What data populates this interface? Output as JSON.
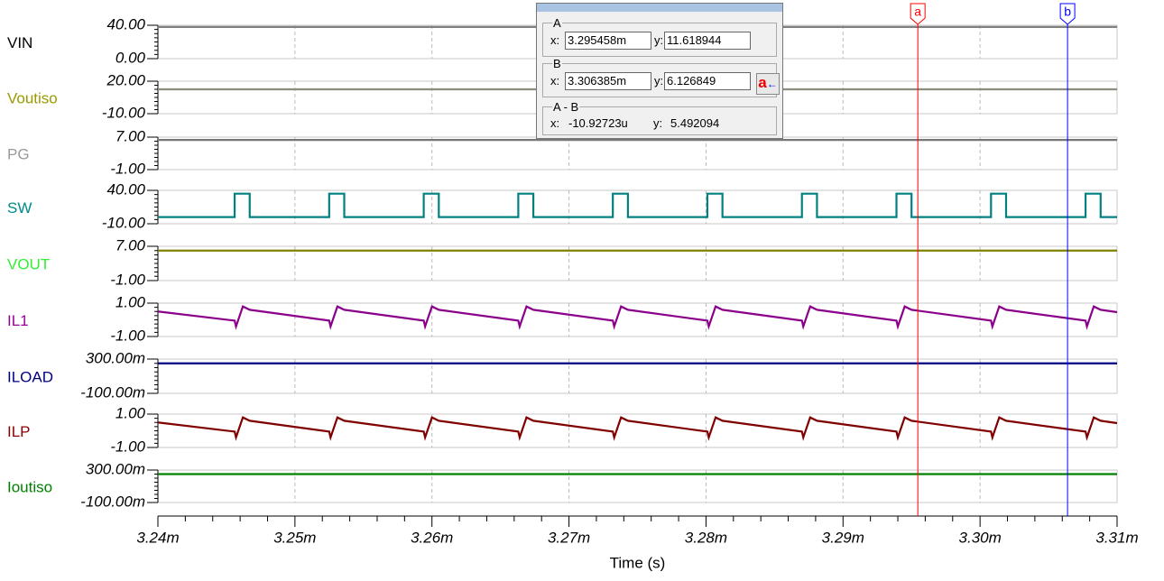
{
  "chart_data": [
    {
      "type": "line",
      "ylim": [
        0,
        40
      ],
      "yticks": [
        {
          "value": 40,
          "label": "40.00"
        },
        {
          "value": 0,
          "label": "0.00"
        }
      ],
      "xlim": [
        0.00324,
        0.00331
      ],
      "grid": true,
      "label_color": "#000000",
      "x": [
        0.00324,
        0.00331
      ],
      "series": [
        {
          "name": "VIN",
          "color": "#808080",
          "values": [
            38,
            38
          ]
        }
      ]
    },
    {
      "type": "line",
      "ylim": [
        -10,
        20
      ],
      "yticks": [
        {
          "value": 20,
          "label": "20.00"
        },
        {
          "value": -10,
          "label": "-10.00"
        }
      ],
      "xlim": [
        0.00324,
        0.00331
      ],
      "grid": true,
      "label_color": "#9a9a00",
      "x": [
        0.00324,
        0.00331
      ],
      "series": [
        {
          "name": "Voutiso",
          "color": "#8c8c80",
          "values": [
            12.5,
            12.5
          ]
        }
      ]
    },
    {
      "type": "line",
      "ylim": [
        -1,
        7
      ],
      "yticks": [
        {
          "value": 7,
          "label": "7.00"
        },
        {
          "value": -1,
          "label": "-1.00"
        }
      ],
      "xlim": [
        0.00324,
        0.00331
      ],
      "grid": true,
      "label_color": "#9a9a9a",
      "x": [
        0.00324,
        0.00331
      ],
      "series": [
        {
          "name": "PG",
          "color": "#777777",
          "values": [
            6.3,
            6.3
          ]
        }
      ]
    },
    {
      "type": "line",
      "ylim": [
        -10,
        40
      ],
      "yticks": [
        {
          "value": 40,
          "label": "40.00"
        },
        {
          "value": -10,
          "label": "-10.00"
        }
      ],
      "xlim": [
        0.00324,
        0.00331
      ],
      "grid": true,
      "label_color": "#008b8b",
      "x": [
        0.00324,
        0.0032456,
        0.0032456,
        0.0032467,
        0.0032467,
        0.0032525,
        0.0032525,
        0.0032536,
        0.0032536,
        0.0032594,
        0.0032594,
        0.0032605,
        0.0032605,
        0.0032663,
        0.0032663,
        0.0032674,
        0.0032674,
        0.0032732,
        0.0032732,
        0.0032743,
        0.0032743,
        0.0032801,
        0.0032801,
        0.0032812,
        0.0032812,
        0.003287,
        0.003287,
        0.0032881,
        0.0032881,
        0.0032939,
        0.0032939,
        0.003295,
        0.003295,
        0.0033008,
        0.0033008,
        0.0033019,
        0.0033019,
        0.0033077,
        0.0033077,
        0.0033088,
        0.0033088,
        0.00331
      ],
      "series": [
        {
          "name": "SW",
          "color": "#008080",
          "values": [
            0,
            0,
            35,
            35,
            0,
            0,
            35,
            35,
            0,
            0,
            35,
            35,
            0,
            0,
            35,
            35,
            0,
            0,
            35,
            35,
            0,
            0,
            35,
            35,
            0,
            0,
            35,
            35,
            0,
            0,
            35,
            35,
            0,
            0,
            35,
            35,
            0,
            0,
            35,
            35,
            0,
            0
          ]
        }
      ]
    },
    {
      "type": "line",
      "ylim": [
        -1,
        7
      ],
      "yticks": [
        {
          "value": 7,
          "label": "7.00"
        },
        {
          "value": -1,
          "label": "-1.00"
        }
      ],
      "xlim": [
        0.00324,
        0.00331
      ],
      "grid": true,
      "label_color": "#33ee33",
      "x": [
        0.00324,
        0.00331
      ],
      "series": [
        {
          "name": "VOUT",
          "color": "#808000",
          "values": [
            6,
            6
          ]
        }
      ]
    },
    {
      "type": "line",
      "ylim": [
        -1,
        1
      ],
      "yticks": [
        {
          "value": 1,
          "label": "1.00"
        },
        {
          "value": -1,
          "label": "-1.00"
        }
      ],
      "xlim": [
        0.00324,
        0.00331
      ],
      "grid": true,
      "label_color": "#990099",
      "x": [
        0.00324,
        0.0032456,
        0.0032457,
        0.0032462,
        0.0032467,
        0.0032525,
        0.0032526,
        0.0032531,
        0.0032536,
        0.0032594,
        0.0032595,
        0.00326,
        0.0032605,
        0.0032663,
        0.0032664,
        0.0032669,
        0.0032674,
        0.0032732,
        0.0032733,
        0.0032738,
        0.0032743,
        0.0032801,
        0.0032802,
        0.0032807,
        0.0032812,
        0.003287,
        0.0032871,
        0.0032876,
        0.0032881,
        0.0032939,
        0.003294,
        0.0032945,
        0.003295,
        0.0033008,
        0.0033009,
        0.0033014,
        0.0033019,
        0.0033077,
        0.0033078,
        0.0033083,
        0.0033088,
        0.00331
      ],
      "series": [
        {
          "name": "IL1",
          "color": "#8b008b",
          "values": [
            0.5,
            -0.05,
            -0.4,
            0.8,
            0.6,
            -0.05,
            -0.4,
            0.8,
            0.6,
            -0.05,
            -0.4,
            0.8,
            0.6,
            -0.05,
            -0.4,
            0.8,
            0.6,
            -0.05,
            -0.4,
            0.8,
            0.6,
            -0.05,
            -0.4,
            0.8,
            0.6,
            -0.05,
            -0.4,
            0.8,
            0.6,
            -0.05,
            -0.4,
            0.8,
            0.6,
            -0.05,
            -0.4,
            0.8,
            0.6,
            -0.05,
            -0.4,
            0.8,
            0.6,
            0.46
          ]
        }
      ]
    },
    {
      "type": "line",
      "ylim": [
        -0.1,
        0.3
      ],
      "yticks": [
        {
          "value": 0.3,
          "label": "300.00m"
        },
        {
          "value": -0.1,
          "label": "-100.00m"
        }
      ],
      "xlim": [
        0.00324,
        0.00331
      ],
      "grid": true,
      "label_color": "#000080",
      "x": [
        0.00324,
        0.00331
      ],
      "series": [
        {
          "name": "ILOAD",
          "color": "#000080",
          "values": [
            0.25,
            0.25
          ]
        }
      ]
    },
    {
      "type": "line",
      "ylim": [
        -1,
        1
      ],
      "yticks": [
        {
          "value": 1,
          "label": "1.00"
        },
        {
          "value": -1,
          "label": "-1.00"
        }
      ],
      "xlim": [
        0.00324,
        0.00331
      ],
      "grid": true,
      "label_color": "#8b0000",
      "x": [
        0.00324,
        0.0032456,
        0.0032457,
        0.0032462,
        0.0032467,
        0.0032525,
        0.0032526,
        0.0032531,
        0.0032536,
        0.0032594,
        0.0032595,
        0.00326,
        0.0032605,
        0.0032663,
        0.0032664,
        0.0032669,
        0.0032674,
        0.0032732,
        0.0032733,
        0.0032738,
        0.0032743,
        0.0032801,
        0.0032802,
        0.0032807,
        0.0032812,
        0.003287,
        0.0032871,
        0.0032876,
        0.0032881,
        0.0032939,
        0.003294,
        0.0032945,
        0.003295,
        0.0033008,
        0.0033009,
        0.0033014,
        0.0033019,
        0.0033077,
        0.0033078,
        0.0033083,
        0.0033088,
        0.00331
      ],
      "series": [
        {
          "name": "ILP",
          "color": "#800000",
          "values": [
            0.5,
            -0.05,
            -0.4,
            0.8,
            0.6,
            -0.05,
            -0.4,
            0.8,
            0.6,
            -0.05,
            -0.4,
            0.8,
            0.6,
            -0.05,
            -0.4,
            0.8,
            0.6,
            -0.05,
            -0.4,
            0.8,
            0.6,
            -0.05,
            -0.4,
            0.8,
            0.6,
            -0.05,
            -0.4,
            0.8,
            0.6,
            -0.05,
            -0.4,
            0.8,
            0.6,
            -0.05,
            -0.4,
            0.8,
            0.6,
            -0.05,
            -0.4,
            0.8,
            0.6,
            0.46
          ]
        }
      ]
    },
    {
      "type": "line",
      "ylim": [
        -0.1,
        0.3
      ],
      "yticks": [
        {
          "value": 0.3,
          "label": "300.00m"
        },
        {
          "value": -0.1,
          "label": "-100.00m"
        }
      ],
      "xlim": [
        0.00324,
        0.00331
      ],
      "grid": true,
      "label_color": "#008000",
      "x": [
        0.00324,
        0.00331
      ],
      "series": [
        {
          "name": "Ioutiso",
          "color": "#008000",
          "values": [
            0.25,
            0.25
          ]
        }
      ],
      "xlabel": "Time (s)",
      "xticks": [
        {
          "value": 0.00324,
          "label": "3.24m"
        },
        {
          "value": 0.00325,
          "label": "3.25m"
        },
        {
          "value": 0.00326,
          "label": "3.26m"
        },
        {
          "value": 0.00327,
          "label": "3.27m"
        },
        {
          "value": 0.00328,
          "label": "3.28m"
        },
        {
          "value": 0.00329,
          "label": "3.29m"
        },
        {
          "value": 0.0033,
          "label": "3.30m"
        },
        {
          "value": 0.00331,
          "label": "3.31m"
        }
      ]
    }
  ],
  "cursors": [
    {
      "label": "a",
      "x": 0.003295458,
      "color": "#ff0000"
    },
    {
      "label": "b",
      "x": 0.003306385,
      "color": "#0000ff"
    }
  ],
  "cursor_panel": {
    "groups": [
      {
        "title": "A",
        "x_label": "x:",
        "x": "3.295458m",
        "y_label": "y:",
        "y": "11.618944"
      },
      {
        "title": "B",
        "x_label": "x:",
        "x": "3.306385m",
        "y_label": "y:",
        "y": "6.126849",
        "button": "a"
      },
      {
        "title": "A - B",
        "x_label": "x:",
        "x": "-10.92723u",
        "y_label": "y:",
        "y": "5.492094"
      }
    ]
  }
}
